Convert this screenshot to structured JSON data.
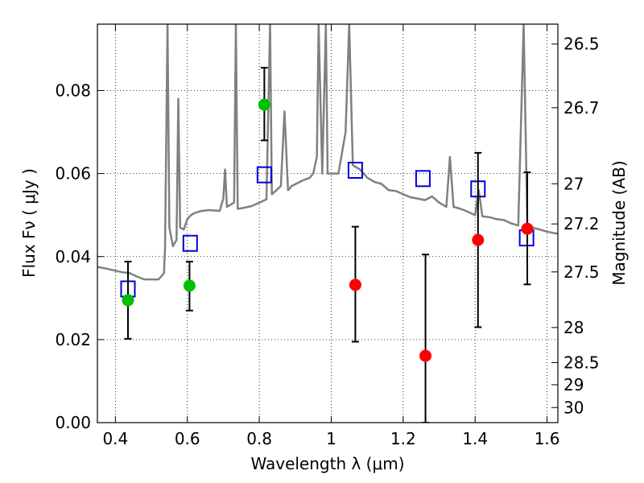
{
  "chart_data": {
    "type": "scatter",
    "xlabel": "Wavelength  λ (μm)",
    "ylabel": "Flux  Fν  ( μJy )",
    "ylabel_right": "Magnitude (AB)",
    "xlim": [
      0.35,
      1.63
    ],
    "ylim": [
      0.0,
      0.096
    ],
    "grid": true,
    "x_ticks": [
      {
        "value": 0.4,
        "label": "0.4"
      },
      {
        "value": 0.6,
        "label": "0.6"
      },
      {
        "value": 0.8,
        "label": "0.8"
      },
      {
        "value": 1.0,
        "label": "1"
      },
      {
        "value": 1.2,
        "label": "1.2"
      },
      {
        "value": 1.4,
        "label": "1.4"
      },
      {
        "value": 1.6,
        "label": "1.6"
      }
    ],
    "y_ticks": [
      {
        "value": 0.0,
        "label": "0.00"
      },
      {
        "value": 0.02,
        "label": "0.02"
      },
      {
        "value": 0.04,
        "label": "0.04"
      },
      {
        "value": 0.06,
        "label": "0.06"
      },
      {
        "value": 0.08,
        "label": "0.08"
      }
    ],
    "magnitude_ticks": [
      {
        "value": 26.5,
        "label": "26.5"
      },
      {
        "value": 26.7,
        "label": "26.7"
      },
      {
        "value": 27,
        "label": "27"
      },
      {
        "value": 27.2,
        "label": "27.2"
      },
      {
        "value": 27.5,
        "label": "27.5"
      },
      {
        "value": 28,
        "label": "28"
      },
      {
        "value": 28.5,
        "label": "28.5"
      },
      {
        "value": 29,
        "label": "29"
      },
      {
        "value": 30,
        "label": "30"
      }
    ],
    "series": [
      {
        "type": "line",
        "color": "#808080",
        "points": [
          [
            0.35,
            0.0375
          ],
          [
            0.37,
            0.0372
          ],
          [
            0.38,
            0.037
          ],
          [
            0.4,
            0.0366
          ],
          [
            0.42,
            0.0362
          ],
          [
            0.44,
            0.036
          ],
          [
            0.46,
            0.0352
          ],
          [
            0.48,
            0.0345
          ],
          [
            0.5,
            0.0345
          ],
          [
            0.52,
            0.0345
          ],
          [
            0.535,
            0.036
          ],
          [
            0.538,
            0.042
          ],
          [
            0.545,
            0.096
          ],
          [
            0.55,
            0.047
          ],
          [
            0.56,
            0.0425
          ],
          [
            0.57,
            0.044
          ],
          [
            0.575,
            0.078
          ],
          [
            0.58,
            0.047
          ],
          [
            0.59,
            0.0465
          ],
          [
            0.6,
            0.049
          ],
          [
            0.61,
            0.05
          ],
          [
            0.62,
            0.0505
          ],
          [
            0.64,
            0.051
          ],
          [
            0.66,
            0.0512
          ],
          [
            0.69,
            0.051
          ],
          [
            0.7,
            0.054
          ],
          [
            0.705,
            0.061
          ],
          [
            0.71,
            0.052
          ],
          [
            0.73,
            0.053
          ],
          [
            0.735,
            0.096
          ],
          [
            0.74,
            0.0515
          ],
          [
            0.76,
            0.0518
          ],
          [
            0.78,
            0.0522
          ],
          [
            0.8,
            0.053
          ],
          [
            0.82,
            0.0538
          ],
          [
            0.83,
            0.096
          ],
          [
            0.835,
            0.055
          ],
          [
            0.86,
            0.057
          ],
          [
            0.87,
            0.075
          ],
          [
            0.88,
            0.056
          ],
          [
            0.89,
            0.057
          ],
          [
            0.92,
            0.0583
          ],
          [
            0.94,
            0.059
          ],
          [
            0.95,
            0.06
          ],
          [
            0.96,
            0.064
          ],
          [
            0.965,
            0.096
          ],
          [
            0.975,
            0.06
          ],
          [
            0.985,
            0.096
          ],
          [
            0.99,
            0.06
          ],
          [
            1.0,
            0.06
          ],
          [
            1.02,
            0.06
          ],
          [
            1.04,
            0.07
          ],
          [
            1.05,
            0.096
          ],
          [
            1.06,
            0.062
          ],
          [
            1.08,
            0.061
          ],
          [
            1.1,
            0.059
          ],
          [
            1.12,
            0.058
          ],
          [
            1.14,
            0.0575
          ],
          [
            1.16,
            0.056
          ],
          [
            1.18,
            0.0558
          ],
          [
            1.2,
            0.055
          ],
          [
            1.22,
            0.0543
          ],
          [
            1.24,
            0.054
          ],
          [
            1.26,
            0.0536
          ],
          [
            1.28,
            0.0545
          ],
          [
            1.3,
            0.053
          ],
          [
            1.32,
            0.052
          ],
          [
            1.33,
            0.064
          ],
          [
            1.34,
            0.052
          ],
          [
            1.36,
            0.0515
          ],
          [
            1.38,
            0.0508
          ],
          [
            1.4,
            0.05
          ],
          [
            1.41,
            0.056
          ],
          [
            1.42,
            0.0497
          ],
          [
            1.44,
            0.0495
          ],
          [
            1.46,
            0.049
          ],
          [
            1.48,
            0.0488
          ],
          [
            1.5,
            0.048
          ],
          [
            1.52,
            0.0475
          ],
          [
            1.535,
            0.096
          ],
          [
            1.545,
            0.048
          ],
          [
            1.56,
            0.047
          ],
          [
            1.58,
            0.0465
          ],
          [
            1.6,
            0.046
          ],
          [
            1.63,
            0.0455
          ]
        ]
      },
      {
        "type": "marker",
        "marker": "square",
        "color": "#0000dd",
        "points": [
          {
            "x": 0.435,
            "y": 0.0322
          },
          {
            "x": 0.608,
            "y": 0.0432
          },
          {
            "x": 0.814,
            "y": 0.0597
          },
          {
            "x": 1.067,
            "y": 0.0608
          },
          {
            "x": 1.255,
            "y": 0.0588
          },
          {
            "x": 1.408,
            "y": 0.0563
          },
          {
            "x": 1.543,
            "y": 0.0445
          }
        ]
      },
      {
        "type": "marker",
        "marker": "circle",
        "color": "#00c000",
        "points": [
          {
            "x": 0.435,
            "y": 0.0295,
            "ylo": 0.0202,
            "yhi": 0.0388
          },
          {
            "x": 0.606,
            "y": 0.033,
            "ylo": 0.027,
            "yhi": 0.0388
          },
          {
            "x": 0.814,
            "y": 0.0766,
            "ylo": 0.068,
            "yhi": 0.0855
          }
        ]
      },
      {
        "type": "marker",
        "marker": "circle",
        "color": "#ff0000",
        "points": [
          {
            "x": 1.067,
            "y": 0.0332,
            "ylo": 0.0195,
            "yhi": 0.0472
          },
          {
            "x": 1.262,
            "y": 0.0161,
            "ylo": 0.0,
            "yhi": 0.0405
          },
          {
            "x": 1.408,
            "y": 0.044,
            "ylo": 0.023,
            "yhi": 0.065
          },
          {
            "x": 1.545,
            "y": 0.0467,
            "ylo": 0.0333,
            "yhi": 0.0603
          }
        ]
      }
    ]
  }
}
